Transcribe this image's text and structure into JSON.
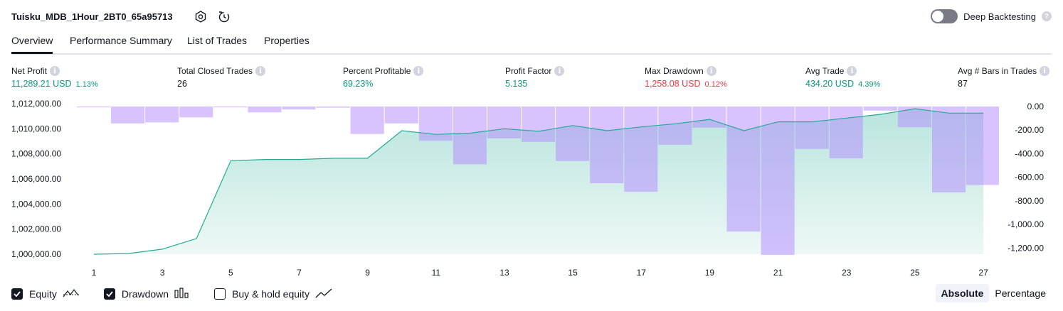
{
  "header": {
    "strategy_title": "Tuisku_MDB_1Hour_2BT0_65a95713",
    "deep_backtesting_label": "Deep Backtesting",
    "deep_backtesting_enabled": false,
    "help_glyph": "?"
  },
  "tabs": [
    {
      "label": "Overview",
      "active": true
    },
    {
      "label": "Performance Summary",
      "active": false
    },
    {
      "label": "List of Trades",
      "active": false
    },
    {
      "label": "Properties",
      "active": false
    }
  ],
  "metrics": [
    {
      "label": "Net Profit",
      "value": "11,289.21 USD",
      "pct": "1.13%",
      "tone": "pos"
    },
    {
      "label": "Total Closed Trades",
      "value": "26",
      "pct": "",
      "tone": "neu"
    },
    {
      "label": "Percent Profitable",
      "value": "69.23%",
      "pct": "",
      "tone": "pos"
    },
    {
      "label": "Profit Factor",
      "value": "5.135",
      "pct": "",
      "tone": "pos"
    },
    {
      "label": "Max Drawdown",
      "value": "1,258.08 USD",
      "pct": "0.12%",
      "tone": "neg"
    },
    {
      "label": "Avg Trade",
      "value": "434.20 USD",
      "pct": "4.39%",
      "tone": "pos"
    },
    {
      "label": "Avg # Bars in Trades",
      "value": "87",
      "pct": "",
      "tone": "neu"
    }
  ],
  "info_glyph": "i",
  "chart_data": {
    "type": "line",
    "x": [
      1,
      2,
      3,
      4,
      5,
      6,
      7,
      8,
      9,
      10,
      11,
      12,
      13,
      14,
      15,
      16,
      17,
      18,
      19,
      20,
      21,
      22,
      23,
      24,
      25,
      26,
      27
    ],
    "x_tick_labels": [
      "1",
      "3",
      "5",
      "7",
      "9",
      "11",
      "13",
      "15",
      "17",
      "19",
      "21",
      "23",
      "25",
      "27"
    ],
    "left_axis": {
      "ticks": [
        "1,012,000.00",
        "1,010,000.00",
        "1,008,000.00",
        "1,006,000.00",
        "1,004,000.00",
        "1,002,000.00",
        "1,000,000.00"
      ],
      "tick_values": [
        1012000,
        1010000,
        1008000,
        1006000,
        1004000,
        1002000,
        1000000
      ],
      "ylim": [
        1000000,
        1012000
      ]
    },
    "right_axis": {
      "ticks": [
        "0.00",
        "-200.00",
        "-400.00",
        "-600.00",
        "-800.00",
        "-1,000.00",
        "-1,200.00"
      ],
      "tick_values": [
        0,
        -200,
        -400,
        -600,
        -800,
        -1000,
        -1200
      ],
      "ylim": [
        -1258,
        0
      ]
    },
    "series": [
      {
        "kind": "equity_area",
        "axis": "left",
        "color": "#22ab94",
        "values": [
          1000000,
          1000050,
          1000400,
          1001250,
          1007450,
          1007550,
          1007550,
          1007650,
          1007650,
          1009850,
          1009550,
          1009650,
          1010000,
          1009800,
          1010250,
          1009850,
          1010150,
          1010400,
          1010750,
          1009850,
          1010550,
          1010550,
          1010850,
          1011150,
          1011600,
          1011250,
          1011250
        ]
      },
      {
        "kind": "drawdown_bars",
        "axis": "right",
        "color": "#b388ff",
        "values": [
          -3,
          -143,
          -135,
          -92,
          -3,
          -50,
          -25,
          -10,
          -233,
          -143,
          -290,
          -490,
          -270,
          -300,
          -462,
          -650,
          -723,
          -325,
          -180,
          -1060,
          -1258,
          -360,
          -440,
          -35,
          -175,
          -728,
          -665
        ]
      }
    ],
    "grid": true
  },
  "legend": {
    "items": [
      {
        "label": "Equity",
        "checked": true,
        "icon": "equity-line-icon"
      },
      {
        "label": "Drawdown",
        "checked": true,
        "icon": "drawdown-bars-icon"
      },
      {
        "label": "Buy & hold equity",
        "checked": false,
        "icon": "trend-line-icon"
      }
    ]
  },
  "mode": {
    "absolute_label": "Absolute",
    "percentage_label": "Percentage",
    "selected": "absolute"
  }
}
